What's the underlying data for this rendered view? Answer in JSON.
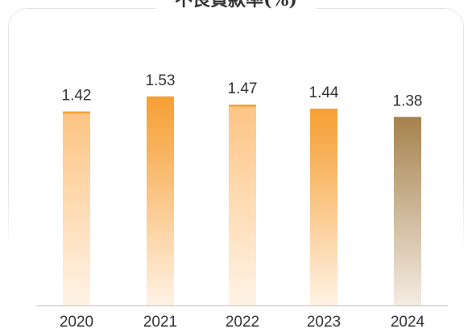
{
  "chart_data": {
    "type": "bar",
    "title": "不良貸款率(%)",
    "categories": [
      "2020",
      "2021",
      "2022",
      "2023",
      "2024"
    ],
    "values": [
      1.42,
      1.53,
      1.47,
      1.44,
      1.38
    ],
    "value_labels": [
      "1.42",
      "1.53",
      "1.47",
      "1.44",
      "1.38"
    ],
    "xlabel": "",
    "ylabel": "",
    "ylim": [
      0,
      1.6
    ],
    "grid": false,
    "legend": "none",
    "colors": {
      "bar_top_orange": "#f6a033",
      "bar_light_orange": "#fdc483",
      "bar_fade": "#fff3e6",
      "bar_2024_top": "#a6824d",
      "bar_2024_fade": "#f4ece2",
      "axis": "#bbbbbb",
      "label": "#333333"
    }
  }
}
